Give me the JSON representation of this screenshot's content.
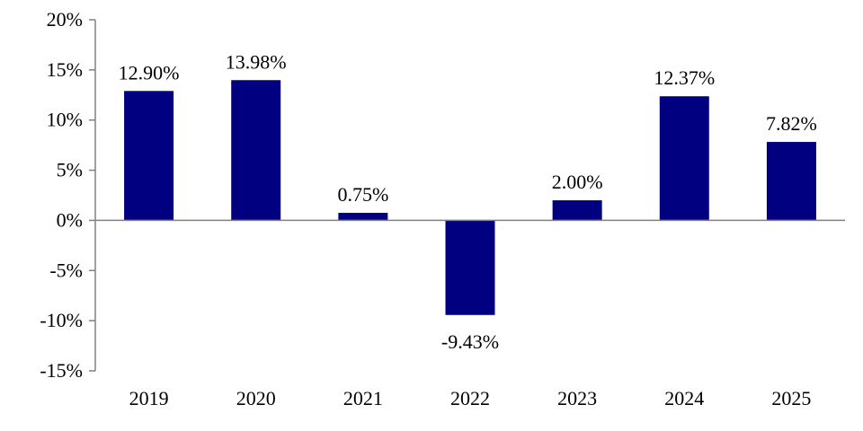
{
  "chart_data": {
    "type": "bar",
    "categories": [
      "2019",
      "2020",
      "2021",
      "2022",
      "2023",
      "2024",
      "2025"
    ],
    "values": [
      12.9,
      13.98,
      0.75,
      -9.43,
      2.0,
      12.37,
      7.82
    ],
    "data_labels": [
      "12.90%",
      "13.98%",
      "0.75%",
      "-9.43%",
      "2.00%",
      "12.37%",
      "7.82%"
    ],
    "y_ticks": [
      20,
      15,
      10,
      5,
      0,
      -5,
      -10,
      -15
    ],
    "y_tick_labels": [
      "20%",
      "15%",
      "10%",
      "5%",
      "0%",
      "-5%",
      "-10%",
      "-15%"
    ],
    "ylim": [
      -15,
      20
    ],
    "title": "",
    "xlabel": "",
    "ylabel": "",
    "grid": false,
    "legend": "none",
    "bar_color": "#000080",
    "axis_color": "#808080"
  }
}
